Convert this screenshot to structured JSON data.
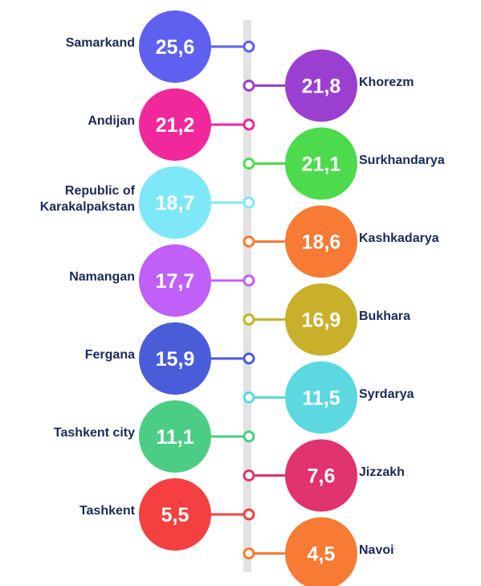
{
  "chart_data": {
    "type": "dot",
    "categories": [
      "Samarkand",
      "Khorezm",
      "Andijan",
      "Surkhandarya",
      "Republic of Karakalpakstan",
      "Kashkadarya",
      "Namangan",
      "Bukhara",
      "Fergana",
      "Syrdarya",
      "Tashkent city",
      "Jizzakh",
      "Tashkent",
      "Navoi"
    ],
    "values": [
      25.6,
      21.8,
      21.2,
      21.1,
      18.7,
      18.6,
      17.7,
      16.9,
      15.9,
      11.5,
      11.1,
      7.6,
      5.5,
      4.5
    ],
    "value_labels": [
      "25,6",
      "21,8",
      "21,2",
      "21,1",
      "18,7",
      "18,6",
      "17,7",
      "16,9",
      "15,9",
      "11,5",
      "11,1",
      "7,6",
      "5,5",
      "4,5"
    ],
    "colors": [
      "#6060f0",
      "#9b3fd0",
      "#f0289b",
      "#4ddb4d",
      "#7ee8f8",
      "#f77a35",
      "#c060f8",
      "#c8b02a",
      "#4a5cd8",
      "#5dd8e0",
      "#4ccd85",
      "#e0336f",
      "#f44040",
      "#f77a35"
    ]
  }
}
